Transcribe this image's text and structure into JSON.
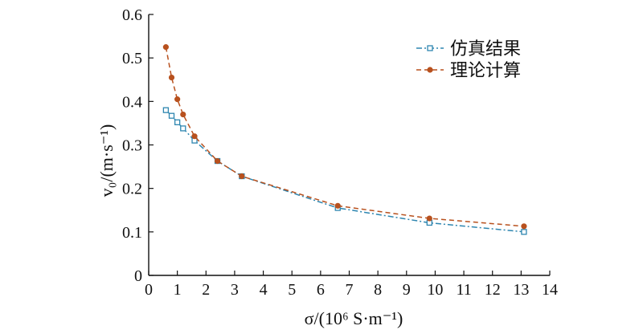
{
  "chart_data": {
    "type": "line",
    "xlabel": "σ/(10⁶ S·m⁻¹)",
    "ylabel": "v₀/(m·s⁻¹)",
    "xlim": [
      0,
      14
    ],
    "ylim": [
      0,
      0.6
    ],
    "xticks": [
      "0",
      "1",
      "2",
      "3",
      "4",
      "5",
      "6",
      "7",
      "8",
      "9",
      "10",
      "11",
      "12",
      "13",
      "14"
    ],
    "yticks": [
      "0",
      "0.1",
      "0.2",
      "0.3",
      "0.4",
      "0.5",
      "0.6"
    ],
    "legend_position": "top-right",
    "grid": false,
    "series": [
      {
        "name": "仿真结果",
        "color": "#2e86b0",
        "line_style": "dash-dot",
        "marker": "open-square",
        "x": [
          0.6,
          0.8,
          1.0,
          1.2,
          1.6,
          2.4,
          3.25,
          6.6,
          9.8,
          13.1
        ],
        "y": [
          0.38,
          0.367,
          0.352,
          0.338,
          0.31,
          0.263,
          0.228,
          0.155,
          0.121,
          0.1
        ]
      },
      {
        "name": "理论计算",
        "color": "#b8511e",
        "line_style": "dashed",
        "marker": "filled-circle",
        "x": [
          0.6,
          0.8,
          1.0,
          1.2,
          1.6,
          2.4,
          3.25,
          6.6,
          9.8,
          13.1
        ],
        "y": [
          0.525,
          0.455,
          0.405,
          0.37,
          0.32,
          0.263,
          0.228,
          0.16,
          0.131,
          0.113
        ]
      }
    ]
  }
}
